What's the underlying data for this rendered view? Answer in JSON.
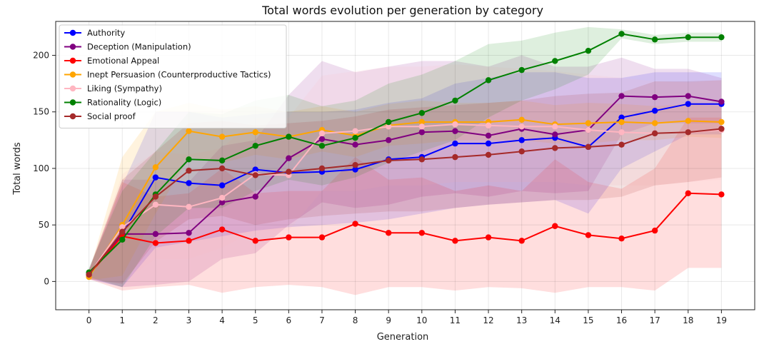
{
  "chart_data": {
    "type": "line",
    "title": "Total words evolution per generation by category",
    "xlabel": "Generation",
    "ylabel": "Total words",
    "x": [
      0,
      1,
      2,
      3,
      4,
      5,
      6,
      7,
      8,
      9,
      10,
      11,
      12,
      13,
      14,
      15,
      16,
      17,
      18,
      19
    ],
    "xlim": [
      -1,
      20
    ],
    "ylim": [
      -25,
      230
    ],
    "yticks": [
      0,
      50,
      100,
      150,
      200
    ],
    "grid": true,
    "legend_position": "top-left",
    "series": [
      {
        "name": "Authority",
        "color": "#0000ff",
        "values": [
          6,
          42,
          92,
          87,
          85,
          99,
          96,
          97,
          99,
          108,
          110,
          122,
          122,
          125,
          127,
          119,
          145,
          151,
          157,
          157
        ],
        "lower": [
          2,
          -5,
          30,
          35,
          40,
          45,
          48,
          50,
          52,
          55,
          60,
          65,
          68,
          70,
          72,
          60,
          100,
          115,
          130,
          130
        ],
        "upper": [
          10,
          85,
          150,
          150,
          145,
          148,
          150,
          150,
          152,
          158,
          162,
          175,
          180,
          185,
          185,
          180,
          180,
          185,
          185,
          185
        ]
      },
      {
        "name": "Deception (Manipulation)",
        "color": "#800080",
        "values": [
          7,
          42,
          42,
          43,
          70,
          75,
          109,
          126,
          121,
          125,
          132,
          133,
          129,
          135,
          130,
          134,
          164,
          163,
          164,
          159
        ],
        "lower": [
          3,
          -5,
          -3,
          0,
          20,
          25,
          50,
          70,
          65,
          68,
          75,
          78,
          75,
          80,
          78,
          80,
          130,
          140,
          140,
          140
        ],
        "upper": [
          11,
          90,
          90,
          88,
          120,
          125,
          165,
          195,
          185,
          190,
          195,
          195,
          190,
          200,
          190,
          190,
          198,
          188,
          188,
          180
        ]
      },
      {
        "name": "Emotional Appeal",
        "color": "#ff0000",
        "values": [
          6,
          40,
          34,
          36,
          46,
          36,
          39,
          39,
          51,
          43,
          43,
          36,
          39,
          36,
          49,
          41,
          38,
          45,
          78,
          77
        ],
        "lower": [
          2,
          -8,
          -5,
          -3,
          -10,
          -5,
          -3,
          -5,
          -12,
          -5,
          -5,
          -8,
          -5,
          -6,
          -10,
          -5,
          -5,
          -8,
          12,
          12
        ],
        "upper": [
          10,
          88,
          75,
          78,
          100,
          78,
          80,
          80,
          110,
          90,
          92,
          80,
          85,
          80,
          108,
          88,
          82,
          100,
          145,
          145
        ]
      },
      {
        "name": "Inept Persuasion (Counterproductive Tactics)",
        "color": "#ffa500",
        "values": [
          4,
          50,
          101,
          133,
          128,
          132,
          128,
          134,
          129,
          138,
          141,
          141,
          141,
          143,
          139,
          140,
          141,
          140,
          142,
          141
        ],
        "lower": [
          1,
          5,
          60,
          110,
          105,
          112,
          108,
          115,
          110,
          120,
          122,
          125,
          125,
          125,
          122,
          122,
          125,
          125,
          128,
          127
        ],
        "upper": [
          8,
          110,
          150,
          158,
          152,
          155,
          150,
          155,
          150,
          157,
          160,
          158,
          158,
          160,
          156,
          158,
          157,
          155,
          157,
          155
        ]
      },
      {
        "name": "Liking (Sympathy)",
        "color": "#ffb6c1",
        "values": [
          6,
          48,
          68,
          66,
          74,
          95,
          94,
          131,
          133,
          137,
          137,
          139,
          138,
          137,
          137,
          134,
          132,
          131,
          132,
          134
        ],
        "lower": [
          2,
          0,
          20,
          20,
          30,
          45,
          45,
          80,
          80,
          85,
          85,
          88,
          88,
          88,
          88,
          85,
          85,
          85,
          88,
          90
        ],
        "upper": [
          10,
          95,
          115,
          112,
          118,
          145,
          145,
          182,
          186,
          190,
          190,
          192,
          190,
          188,
          186,
          183,
          180,
          177,
          176,
          178
        ]
      },
      {
        "name": "Rationality (Logic)",
        "color": "#008000",
        "values": [
          8,
          37,
          77,
          108,
          107,
          120,
          128,
          120,
          127,
          141,
          149,
          160,
          178,
          187,
          195,
          204,
          219,
          214,
          216,
          216
        ],
        "lower": [
          4,
          -5,
          40,
          65,
          65,
          80,
          90,
          85,
          92,
          105,
          115,
          125,
          145,
          160,
          170,
          183,
          215,
          210,
          212,
          212
        ],
        "upper": [
          12,
          80,
          115,
          150,
          148,
          160,
          165,
          155,
          160,
          175,
          183,
          195,
          210,
          213,
          220,
          225,
          223,
          218,
          220,
          220
        ]
      },
      {
        "name": "Social proof",
        "color": "#a52a2a",
        "values": [
          6,
          44,
          75,
          98,
          100,
          94,
          97,
          100,
          103,
          107,
          108,
          110,
          112,
          115,
          118,
          119,
          121,
          131,
          132,
          135
        ],
        "lower": [
          2,
          -2,
          35,
          55,
          58,
          50,
          55,
          58,
          60,
          62,
          62,
          65,
          68,
          70,
          72,
          72,
          75,
          85,
          88,
          92
        ],
        "upper": [
          10,
          90,
          115,
          140,
          142,
          138,
          140,
          142,
          146,
          152,
          154,
          156,
          158,
          160,
          164,
          166,
          167,
          177,
          177,
          178
        ]
      }
    ]
  }
}
